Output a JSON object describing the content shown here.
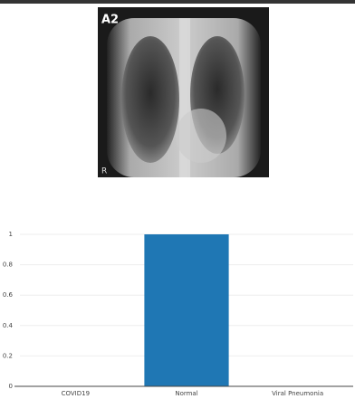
{
  "image": {
    "labels": [
      "A2",
      "R"
    ]
  },
  "chart_data": {
    "type": "bar",
    "categories": [
      "COVID19",
      "Normal",
      "Viral Pneumonia"
    ],
    "values": [
      0,
      1,
      0
    ],
    "color": "#1f77b4",
    "ylim": [
      0,
      1
    ],
    "yticks": [
      0,
      0.2,
      0.4,
      0.6,
      0.8,
      1
    ],
    "grid": true
  }
}
